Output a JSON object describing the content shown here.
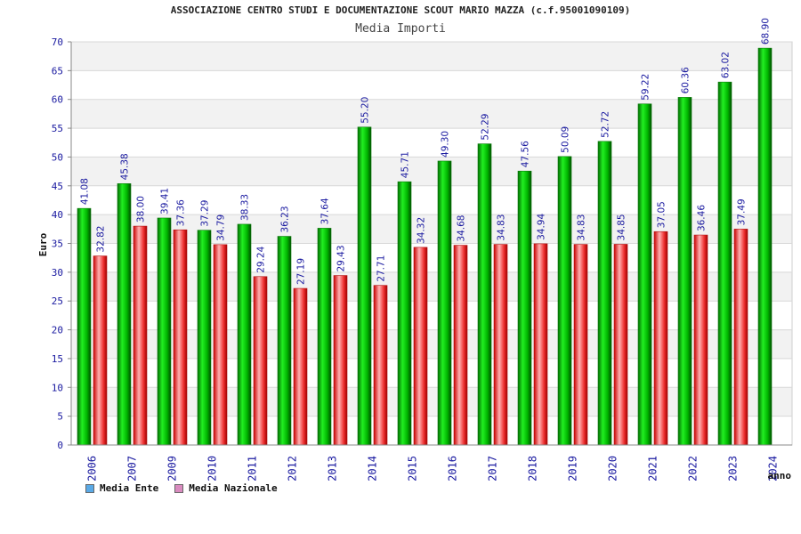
{
  "chart_data": {
    "type": "bar",
    "title": "ASSOCIAZIONE CENTRO STUDI E DOCUMENTAZIONE SCOUT MARIO MAZZA (c.f.95001090109)",
    "subtitle": "Media Importi",
    "ylabel": "Euro",
    "xlabel": "anno",
    "ylim": [
      0,
      70
    ],
    "yticks": [
      0,
      5,
      10,
      15,
      20,
      25,
      30,
      35,
      40,
      45,
      50,
      55,
      60,
      65,
      70
    ],
    "grid": true,
    "legend_position": "bottom-left",
    "categories": [
      "2006",
      "2007",
      "2009",
      "2010",
      "2011",
      "2012",
      "2013",
      "2014",
      "2015",
      "2016",
      "2017",
      "2018",
      "2019",
      "2020",
      "2021",
      "2022",
      "2023",
      "2024"
    ],
    "series": [
      {
        "name": "Media Ente",
        "color": "#00b000",
        "legend_color": "#5aa9e6",
        "values": [
          41.08,
          45.38,
          39.41,
          37.29,
          38.33,
          36.23,
          37.64,
          55.2,
          45.71,
          49.3,
          52.29,
          47.56,
          50.09,
          52.72,
          59.22,
          60.36,
          63.02,
          68.9
        ]
      },
      {
        "name": "Media Nazionale",
        "color": "#e02020",
        "legend_color": "#d98bbf",
        "values": [
          32.82,
          38.0,
          37.36,
          34.79,
          29.24,
          27.19,
          29.43,
          27.71,
          34.32,
          34.68,
          34.83,
          34.94,
          34.83,
          34.85,
          37.05,
          36.46,
          37.49,
          null
        ]
      }
    ]
  }
}
